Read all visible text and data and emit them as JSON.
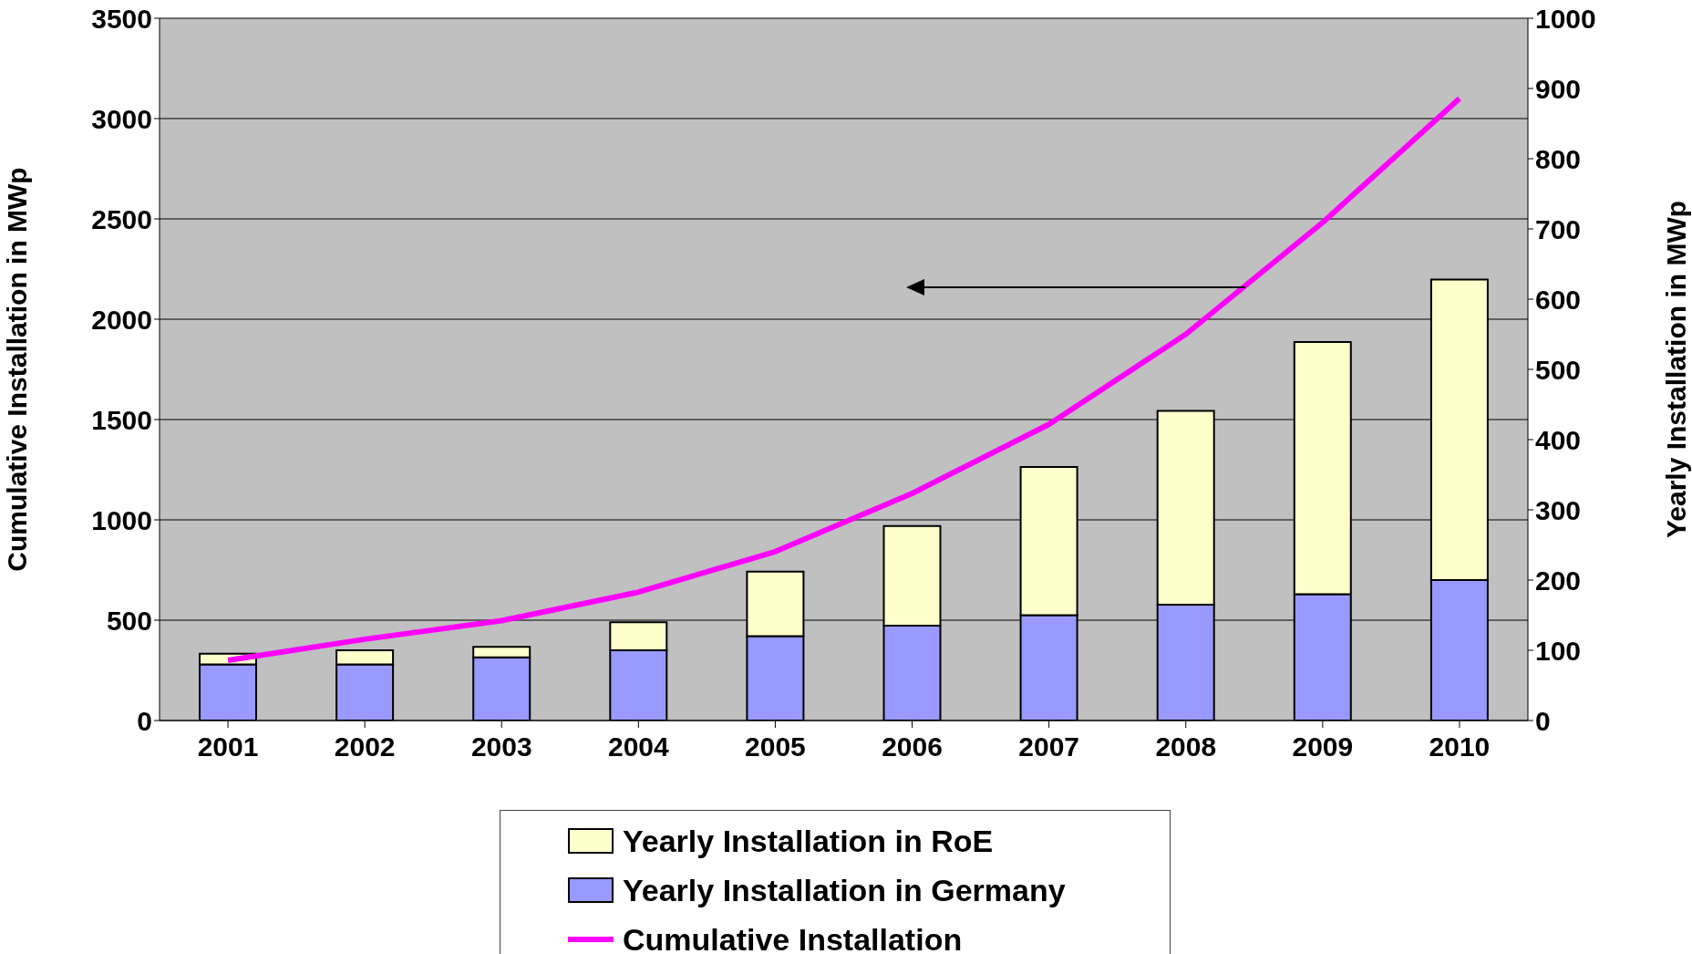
{
  "chart_data": {
    "type": "bar",
    "stacked": true,
    "categories": [
      "2001",
      "2002",
      "2003",
      "2004",
      "2005",
      "2006",
      "2007",
      "2008",
      "2009",
      "2010"
    ],
    "ylabel": "Cumulative Installation in MWp",
    "y2label": "Yearly Installation in MWp",
    "ylim": [
      0,
      3500
    ],
    "yticks": [
      0,
      500,
      1000,
      1500,
      2000,
      2500,
      3000,
      3500
    ],
    "y2lim": [
      0,
      1000
    ],
    "y2ticks": [
      0,
      100,
      200,
      300,
      400,
      500,
      600,
      700,
      800,
      900,
      1000
    ],
    "grid": "y",
    "legend": "bottom",
    "marker": "none",
    "series": [
      {
        "name": "Yearly Installation in Germany",
        "axis": "y2",
        "color": "#9999ff",
        "values": [
          80,
          80,
          90,
          100,
          120,
          135,
          150,
          165,
          180,
          200
        ]
      },
      {
        "name": "Yearly Installation in RoE",
        "axis": "y2",
        "color": "#ffffcc",
        "values": [
          15,
          20,
          15,
          40,
          92,
          142,
          211,
          276,
          359,
          428
        ]
      },
      {
        "name": "Cumulative Installation",
        "type": "line",
        "axis": "y",
        "color": "#ff00ff",
        "values": [
          300,
          405,
          498,
          640,
          842,
          1132,
          1476,
          1925,
          2482,
          3100
        ]
      }
    ]
  }
}
